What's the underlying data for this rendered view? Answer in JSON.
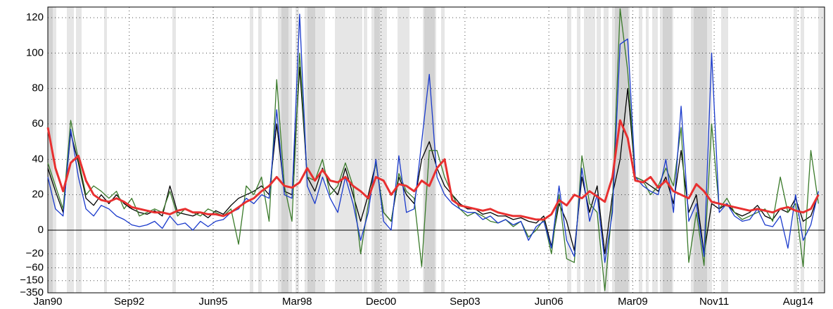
{
  "chart_data": {
    "type": "line",
    "x": [
      1990,
      1990.25,
      1990.5,
      1990.75,
      1991,
      1991.25,
      1991.5,
      1991.75,
      1992,
      1992.25,
      1992.5,
      1992.75,
      1993,
      1993.25,
      1993.5,
      1993.75,
      1994,
      1994.25,
      1994.5,
      1994.75,
      1995,
      1995.25,
      1995.5,
      1995.75,
      1996,
      1996.25,
      1996.5,
      1996.75,
      1997,
      1997.25,
      1997.5,
      1997.75,
      1998,
      1998.25,
      1998.5,
      1998.75,
      1999,
      1999.25,
      1999.5,
      1999.75,
      2000,
      2000.25,
      2000.5,
      2000.75,
      2001,
      2001.25,
      2001.5,
      2001.75,
      2002,
      2002.25,
      2002.5,
      2002.75,
      2003,
      2003.25,
      2003.5,
      2003.75,
      2004,
      2004.25,
      2004.5,
      2004.75,
      2005,
      2005.25,
      2005.5,
      2005.75,
      2006,
      2006.25,
      2006.5,
      2006.75,
      2007,
      2007.25,
      2007.5,
      2007.75,
      2008,
      2008.25,
      2008.5,
      2008.75,
      2009,
      2009.25,
      2009.5,
      2009.75,
      2010,
      2010.25,
      2010.5,
      2010.75,
      2011,
      2011.25,
      2011.5,
      2011.75,
      2012,
      2012.25,
      2012.5,
      2012.75,
      2013,
      2013.25,
      2013.5,
      2013.75,
      2014,
      2014.25,
      2014.5,
      2014.75,
      2015,
      2015.25
    ],
    "series": [
      {
        "color": "#000000",
        "values": [
          35,
          22,
          10,
          55,
          38,
          18,
          14,
          20,
          15,
          20,
          15,
          12,
          10,
          9,
          11,
          8,
          25,
          10,
          9,
          8,
          10,
          7,
          11,
          9,
          14,
          18,
          20,
          22,
          25,
          20,
          60,
          22,
          20,
          92,
          30,
          22,
          35,
          25,
          20,
          35,
          20,
          5,
          20,
          38,
          10,
          5,
          30,
          20,
          15,
          40,
          50,
          35,
          25,
          20,
          15,
          12,
          12,
          9,
          10,
          8,
          8,
          6,
          7,
          5,
          4,
          8,
          -10,
          15,
          5,
          -15,
          30,
          10,
          25,
          -20,
          20,
          40,
          80,
          30,
          28,
          25,
          22,
          30,
          15,
          45,
          10,
          20,
          -20,
          15,
          12,
          15,
          10,
          8,
          10,
          14,
          8,
          6,
          12,
          10,
          18,
          5,
          8,
          20
        ]
      },
      {
        "color": "#3a7a2a",
        "values": [
          38,
          25,
          12,
          62,
          40,
          20,
          25,
          22,
          18,
          22,
          12,
          18,
          8,
          10,
          12,
          10,
          22,
          8,
          12,
          10,
          8,
          12,
          10,
          8,
          12,
          -8,
          25,
          20,
          30,
          5,
          85,
          25,
          5,
          100,
          30,
          28,
          40,
          20,
          25,
          38,
          25,
          -20,
          15,
          38,
          10,
          5,
          32,
          22,
          18,
          -55,
          45,
          45,
          30,
          20,
          12,
          8,
          10,
          8,
          5,
          4,
          6,
          2,
          5,
          -3,
          0,
          6,
          -20,
          20,
          -30,
          -40,
          42,
          15,
          10,
          -300,
          15,
          125,
          90,
          30,
          28,
          20,
          25,
          35,
          25,
          58,
          -40,
          10,
          -50,
          60,
          12,
          18,
          10,
          6,
          8,
          10,
          12,
          5,
          30,
          10,
          15,
          -55,
          45,
          15
        ]
      },
      {
        "color": "#1a3acc",
        "values": [
          30,
          12,
          8,
          57,
          30,
          12,
          8,
          14,
          12,
          8,
          6,
          3,
          2,
          3,
          5,
          1,
          8,
          3,
          4,
          0,
          5,
          2,
          5,
          6,
          10,
          12,
          18,
          15,
          20,
          18,
          68,
          20,
          18,
          122,
          25,
          15,
          30,
          18,
          10,
          30,
          15,
          -5,
          10,
          40,
          5,
          0,
          42,
          10,
          12,
          50,
          88,
          30,
          20,
          15,
          12,
          10,
          10,
          6,
          8,
          4,
          6,
          3,
          5,
          -5,
          2,
          5,
          -12,
          25,
          -5,
          -25,
          35,
          5,
          20,
          -40,
          10,
          105,
          108,
          30,
          25,
          22,
          20,
          40,
          10,
          70,
          5,
          15,
          -25,
          100,
          10,
          15,
          8,
          5,
          6,
          12,
          3,
          2,
          8,
          -12,
          20,
          -5,
          3,
          22
        ]
      },
      {
        "color": "#e83030",
        "values": [
          58,
          35,
          22,
          38,
          42,
          28,
          20,
          17,
          16,
          18,
          16,
          13,
          12,
          11,
          10,
          10,
          9,
          11,
          12,
          10,
          10,
          9,
          9,
          8,
          10,
          13,
          16,
          18,
          22,
          25,
          30,
          25,
          24,
          27,
          35,
          28,
          34,
          28,
          27,
          30,
          25,
          22,
          18,
          30,
          28,
          20,
          26,
          25,
          22,
          28,
          25,
          35,
          40,
          17,
          14,
          13,
          12,
          11,
          12,
          10,
          9,
          8,
          8,
          7,
          6,
          6,
          9,
          17,
          14,
          20,
          18,
          22,
          19,
          16,
          30,
          62,
          52,
          28,
          27,
          30,
          24,
          28,
          22,
          20,
          18,
          26,
          22,
          16,
          15,
          14,
          13,
          12,
          11,
          12,
          11,
          10,
          12,
          13,
          11,
          10,
          12,
          20
        ]
      }
    ],
    "xlim": [
      1990,
      2015.45
    ],
    "xticks": [
      {
        "value": 1990,
        "label": "Jan90"
      },
      {
        "value": 1992.667,
        "label": "Sep92"
      },
      {
        "value": 1995.417,
        "label": "Jun95"
      },
      {
        "value": 1998.167,
        "label": "Mar98"
      },
      {
        "value": 2000.917,
        "label": "Dec00"
      },
      {
        "value": 2003.667,
        "label": "Sep03"
      },
      {
        "value": 2006.417,
        "label": "Jun06"
      },
      {
        "value": 2009.167,
        "label": "Mar09"
      },
      {
        "value": 2011.833,
        "label": "Nov11"
      },
      {
        "value": 2014.583,
        "label": "Aug14"
      }
    ],
    "ylim": [
      -350,
      126
    ],
    "yticks": [
      {
        "value": -350,
        "label": "−350"
      },
      {
        "value": -150,
        "label": "−150"
      },
      {
        "value": -60,
        "label": "−60"
      },
      {
        "value": -20,
        "label": "−20"
      },
      0,
      20,
      40,
      60,
      80,
      100,
      120
    ],
    "grid": true
  }
}
